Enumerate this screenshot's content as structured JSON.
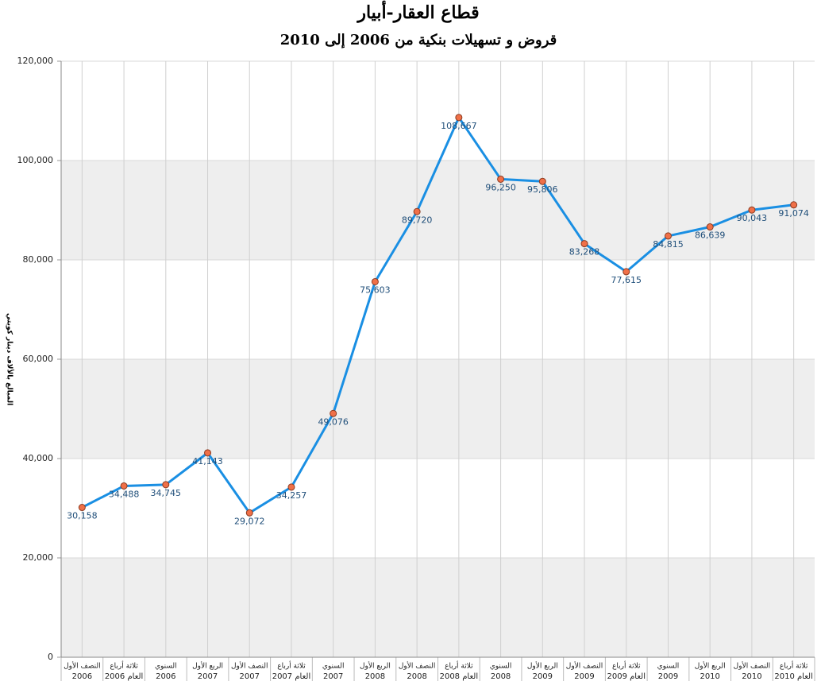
{
  "chart_data": {
    "type": "line",
    "title": "قطاع العقار-أبيار",
    "subtitle": "قروض و تسهيلات بنكية من 2006 إلى 2010",
    "y_label": "المبالغ بالألاف دينار كويتي",
    "categories": [
      [
        "النصف الأول",
        "2006"
      ],
      [
        "ثلاثة أرباع",
        "العام 2006"
      ],
      [
        "السنوي",
        "2006"
      ],
      [
        "الربع الأول",
        "2007"
      ],
      [
        "النصف الأول",
        "2007"
      ],
      [
        "ثلاثة أرباع",
        "العام 2007"
      ],
      [
        "السنوي",
        "2007"
      ],
      [
        "الربع الأول",
        "2008"
      ],
      [
        "النصف الأول",
        "2008"
      ],
      [
        "ثلاثة أرباع",
        "العام 2008"
      ],
      [
        "السنوي",
        "2008"
      ],
      [
        "الربع الأول",
        "2009"
      ],
      [
        "النصف الأول",
        "2009"
      ],
      [
        "ثلاثة أرباع",
        "العام 2009"
      ],
      [
        "السنوي",
        "2009"
      ],
      [
        "الربع الأول",
        "2010"
      ],
      [
        "النصف الأول",
        "2010"
      ],
      [
        "ثلاثة أرباع",
        "العام 2010"
      ]
    ],
    "series": [
      {
        "color": "#1a8fe3",
        "marker_color": "#f07048",
        "values": [
          30158,
          34488,
          34745,
          41143,
          29072,
          34257,
          49076,
          75603,
          89720,
          108667,
          96250,
          95806,
          83268,
          77615,
          84815,
          86639,
          90043,
          91074
        ],
        "value_labels": [
          "30,158",
          "34,488",
          "34,745",
          "41,143",
          "29,072",
          "34,257",
          "49,076",
          "75,603",
          "89,720",
          "108,667",
          "96,250",
          "95,806",
          "83,268",
          "77,615",
          "84,815",
          "86,639",
          "90,043",
          "91,074"
        ]
      }
    ],
    "ylim": [
      0,
      120000
    ],
    "yticks": [
      0,
      {
        "value": 20000,
        "label": "20,000"
      },
      {
        "value": 40000,
        "label": "40,000"
      },
      {
        "value": 60000,
        "label": "60,000"
      },
      {
        "value": 80000,
        "label": "80,000"
      },
      {
        "value": 100000,
        "label": "100,000"
      },
      {
        "value": 120000,
        "label": "120,000"
      }
    ],
    "band_color": "#eeeeee",
    "grid": true
  }
}
